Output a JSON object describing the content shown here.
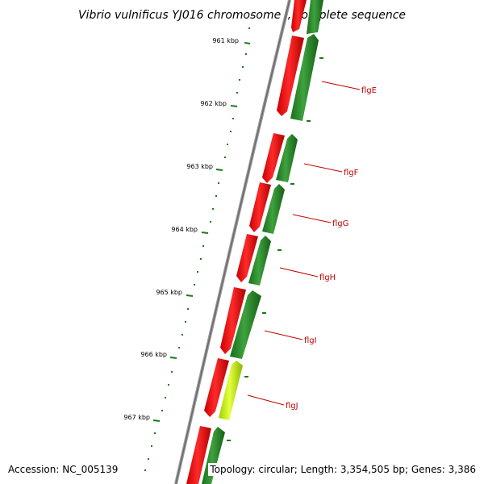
{
  "title": "Vibrio vulnificus YJ016 chromosome I, complete sequence",
  "scale": {
    "ticks": [
      "961 kbp",
      "962 kbp",
      "963 kbp",
      "964 kbp",
      "965 kbp",
      "966 kbp",
      "967 kbp"
    ]
  },
  "genes": [
    {
      "name": "flgE"
    },
    {
      "name": "flgF"
    },
    {
      "name": "flgG"
    },
    {
      "name": "flgH"
    },
    {
      "name": "flgI"
    },
    {
      "name": "flgJ"
    }
  ],
  "colors": {
    "forward_strand": "#ff0000",
    "reverse_strand": "#2e8b2e",
    "highlight_strand": "#c8f000",
    "backbone": "#808080",
    "tick": "#1a7a1a",
    "label": "#c00000"
  },
  "footer": {
    "accession": "Accession: NC_005139",
    "topology": "Topology: circular; Length: 3,354,505 bp; Genes: 3,386"
  }
}
